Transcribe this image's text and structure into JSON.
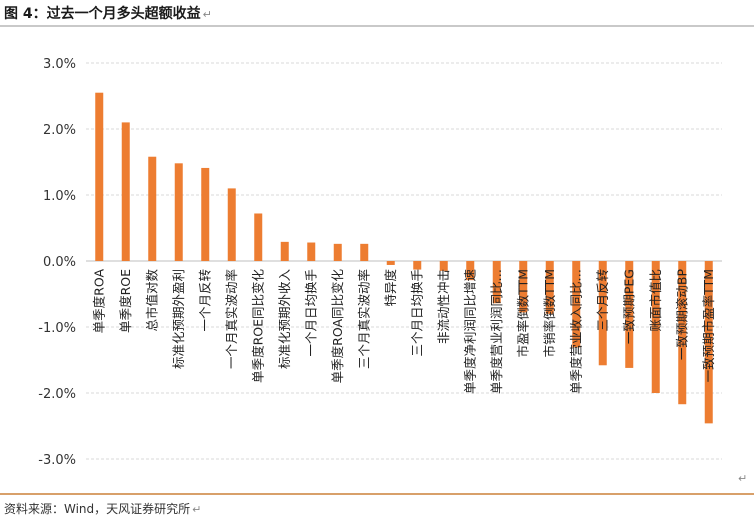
{
  "figure": {
    "title": "图 4：过去一个月多头超额收益",
    "source": "资料来源：Wind，天风证券研究所",
    "return_mark": "↵"
  },
  "colors": {
    "bar": "#ED7D31",
    "grid": "#D9D9D9",
    "axis": "#BFBFBF"
  },
  "chart_data": {
    "type": "bar",
    "title": "",
    "xlabel": "",
    "ylabel": "",
    "ylim": [
      -0.03,
      0.03
    ],
    "yticks": [
      {
        "value": 0.03,
        "label": "3.0%"
      },
      {
        "value": 0.02,
        "label": "2.0%"
      },
      {
        "value": 0.01,
        "label": "1.0%"
      },
      {
        "value": 0.0,
        "label": "0.0%"
      },
      {
        "value": -0.01,
        "label": "-1.0%"
      },
      {
        "value": -0.02,
        "label": "-2.0%"
      },
      {
        "value": -0.03,
        "label": "-3.0%"
      }
    ],
    "grid": true,
    "legend": "none",
    "categories": [
      "单季度ROA",
      "单季度ROE",
      "总市值对数",
      "标准化预期外盈利",
      "一个月反转",
      "一个月真实波动率",
      "单季度ROE同比变化",
      "标准化预期外收入",
      "一个月日均换手",
      "单季度ROA同比变化",
      "三个月真实波动率",
      "特异度",
      "三个月日均换手",
      "非流动性冲击",
      "单季度净利润同比增速",
      "单季度营业利润同比…",
      "市盈率倒数TTM",
      "市销率倒数TTM",
      "单季度营业收入同比…",
      "三个月反转",
      "一致预期PEG",
      "账面市值比",
      "一致预期滚动BP",
      "一致预期市盈率TTM"
    ],
    "values": [
      0.0255,
      0.021,
      0.0158,
      0.0148,
      0.0141,
      0.011,
      0.0072,
      0.0029,
      0.0028,
      0.0026,
      0.0026,
      -0.0006,
      -0.0013,
      -0.0015,
      -0.0029,
      -0.0064,
      -0.0078,
      -0.008,
      -0.0131,
      -0.0158,
      -0.0162,
      -0.02,
      -0.0217,
      -0.0246
    ]
  }
}
